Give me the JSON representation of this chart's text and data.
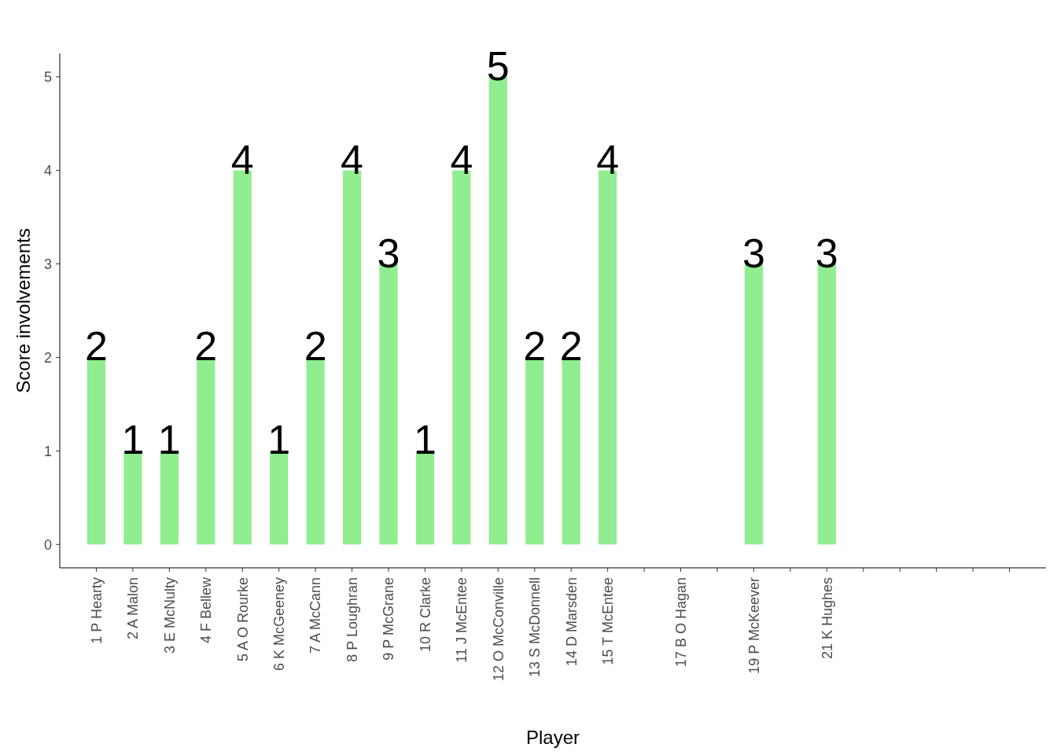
{
  "chart_data": {
    "type": "bar",
    "xlabel": "Player",
    "ylabel": "Score involvements",
    "categories": [
      "1 P Hearty",
      "2 A Malon",
      "3 E McNulty",
      "4 F Bellew",
      "5 A O Rourke",
      "6 K McGeeney",
      "7 A McCann",
      "8 P Loughran",
      "9 P McGrane",
      "10 R Clarke",
      "11 J McEntee",
      "12 O McConville",
      "13 S McDonnell",
      "14 D Marsden",
      "15 T McEntee",
      null,
      "17 B O Hagan",
      null,
      "19 P McKeever",
      null,
      "21 K Hughes",
      null,
      null,
      null,
      null,
      null
    ],
    "values": [
      2,
      1,
      1,
      2,
      4,
      1,
      2,
      4,
      3,
      1,
      4,
      5,
      2,
      2,
      4,
      null,
      null,
      null,
      3,
      null,
      3,
      null,
      null,
      null,
      null,
      null
    ],
    "color": "#90ee90",
    "ylim": [
      -0.25,
      5.25
    ],
    "yticks": [
      0,
      1,
      2,
      3,
      4,
      5
    ],
    "data_labels": true
  }
}
